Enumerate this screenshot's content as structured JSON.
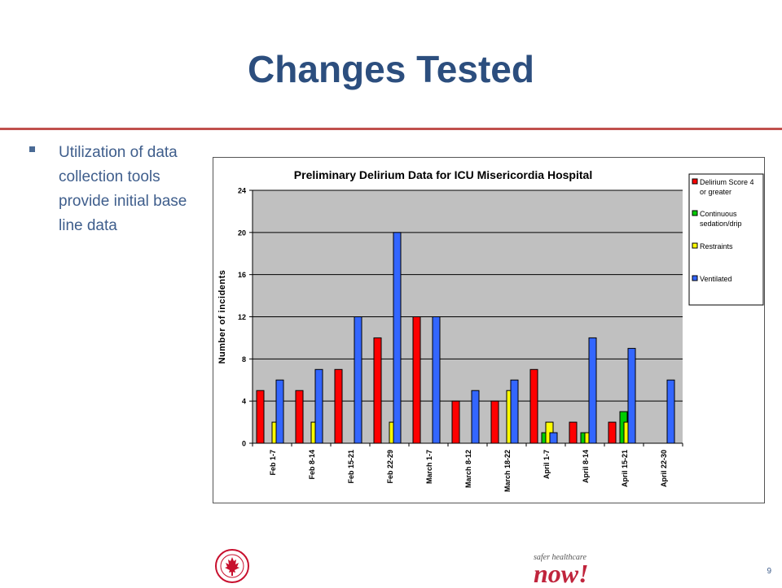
{
  "slide": {
    "title": "Changes Tested",
    "bullet": "Utilization of data collection tools provide initial base line data",
    "page_number": "9",
    "logo_right_tagline": "safer healthcare",
    "logo_right_word": "now!"
  },
  "colors": {
    "title": "#2c4e7e",
    "rule": "#c0504d",
    "plot_bg": "#c0c0c0",
    "series": [
      "#ff0000",
      "#00cc00",
      "#ffff00",
      "#3366ff"
    ]
  },
  "chart_data": {
    "type": "bar",
    "title": "Preliminary Delirium Data for ICU Misericordia Hospital",
    "xlabel": "",
    "ylabel": "Number of incidents",
    "ylim": [
      0,
      24
    ],
    "yticks": [
      0,
      4,
      8,
      12,
      16,
      20,
      24
    ],
    "grid": true,
    "legend_position": "right",
    "categories": [
      "Feb 1-7",
      "Feb 8-14",
      "Feb 15-21",
      "Feb 22-29",
      "March 1-7",
      "March 8-12",
      "March 18-22",
      "April 1-7",
      "April 8-14",
      "April 15-21",
      "April 22-30"
    ],
    "series": [
      {
        "name": "Delirium Score 4 or greater",
        "color": "#ff0000",
        "values": [
          5,
          5,
          7,
          10,
          12,
          4,
          4,
          7,
          2,
          2,
          0
        ]
      },
      {
        "name": "Continuous sedation/drip",
        "color": "#00cc00",
        "values": [
          0,
          0,
          0,
          0,
          0,
          0,
          0,
          1,
          1,
          3,
          0
        ]
      },
      {
        "name": "Restraints",
        "color": "#ffff00",
        "values": [
          2,
          2,
          0,
          2,
          0,
          0,
          5,
          2,
          1,
          2,
          0
        ]
      },
      {
        "name": "Ventilated",
        "color": "#3366ff",
        "values": [
          6,
          7,
          12,
          20,
          12,
          5,
          6,
          1,
          10,
          9,
          6
        ]
      }
    ]
  }
}
